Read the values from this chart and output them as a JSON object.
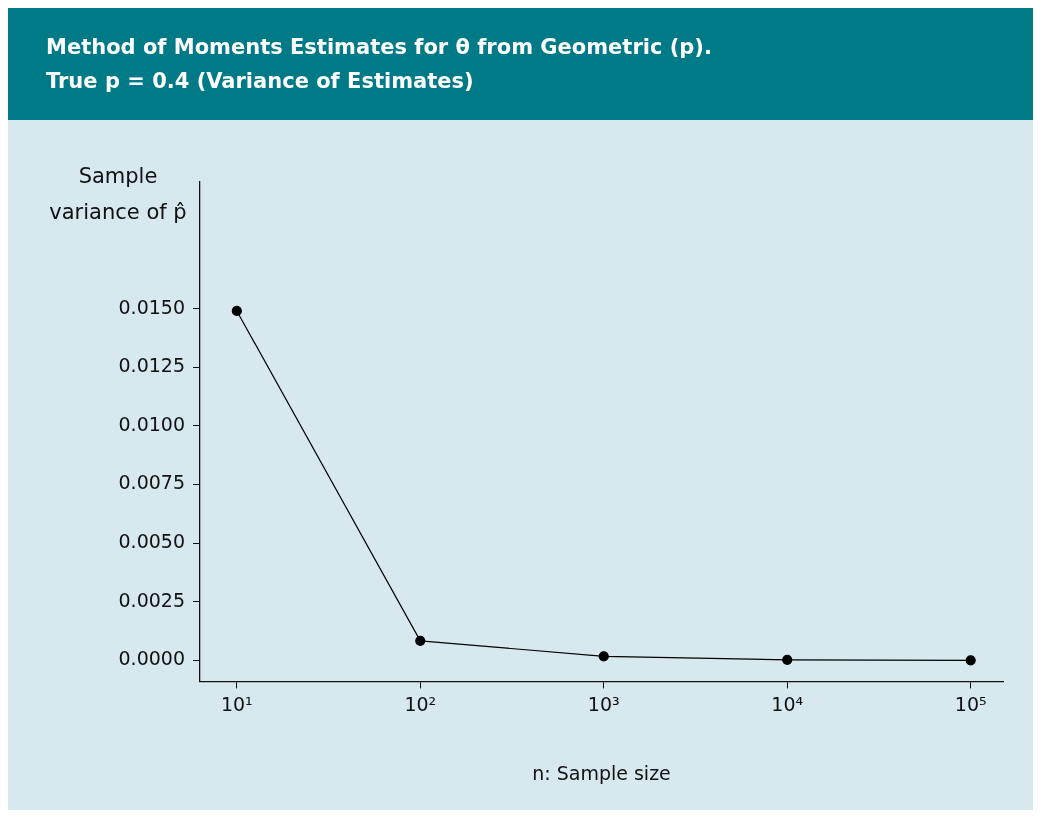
{
  "chart_data": {
    "type": "line",
    "title": "Method of Moments Estimates for θ from Geometric (p).\nTrue p = 0.4 (Variance of Estimates)",
    "xlabel": "n: Sample size",
    "ylabel": "Sample variance of p̂",
    "x": [
      10,
      100,
      1000,
      10000,
      100000
    ],
    "series": [
      {
        "color": "#000000",
        "values": [
          0.0149,
          0.00083,
          0.00017,
          2e-05,
          0.0
        ]
      }
    ],
    "log": "x",
    "xlim": [
      6.3,
      150000
    ],
    "xticks": [
      {
        "value": 10,
        "label": "10¹"
      },
      {
        "value": 100,
        "label": "10²"
      },
      {
        "value": 1000,
        "label": "10³"
      },
      {
        "value": 10000,
        "label": "10⁴"
      },
      {
        "value": 100000,
        "label": "10⁵"
      }
    ],
    "ylim": [
      -0.0009,
      0.0204
    ],
    "yticks": [
      {
        "value": 0,
        "label": "0.0000"
      },
      {
        "value": 0.0025,
        "label": "0.0025"
      },
      {
        "value": 0.005,
        "label": "0.0050"
      },
      {
        "value": 0.0075,
        "label": "0.0075"
      },
      {
        "value": 0.01,
        "label": "0.0100"
      },
      {
        "value": 0.0125,
        "label": "0.0125"
      },
      {
        "value": 0.015,
        "label": "0.0150"
      }
    ],
    "grid": false,
    "legend": false,
    "marker": "circle",
    "line_style": "solid"
  }
}
